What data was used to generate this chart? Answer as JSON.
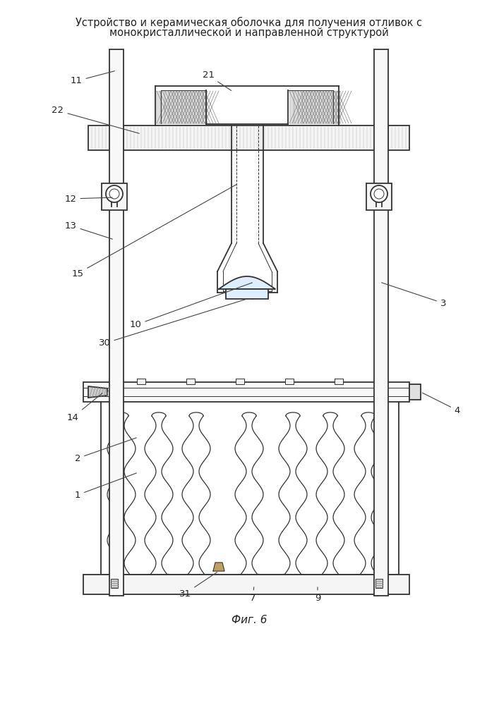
{
  "title_line1": "Устройство и керамическая оболочка для получения отливок с",
  "title_line2": "монокристаллической и направленной структурой",
  "fig_caption": "Фиг. 6",
  "bg_color": "#ffffff",
  "line_color": "#333333",
  "lw_main": 1.3,
  "lw_thin": 0.7,
  "lw_thick": 2.0
}
